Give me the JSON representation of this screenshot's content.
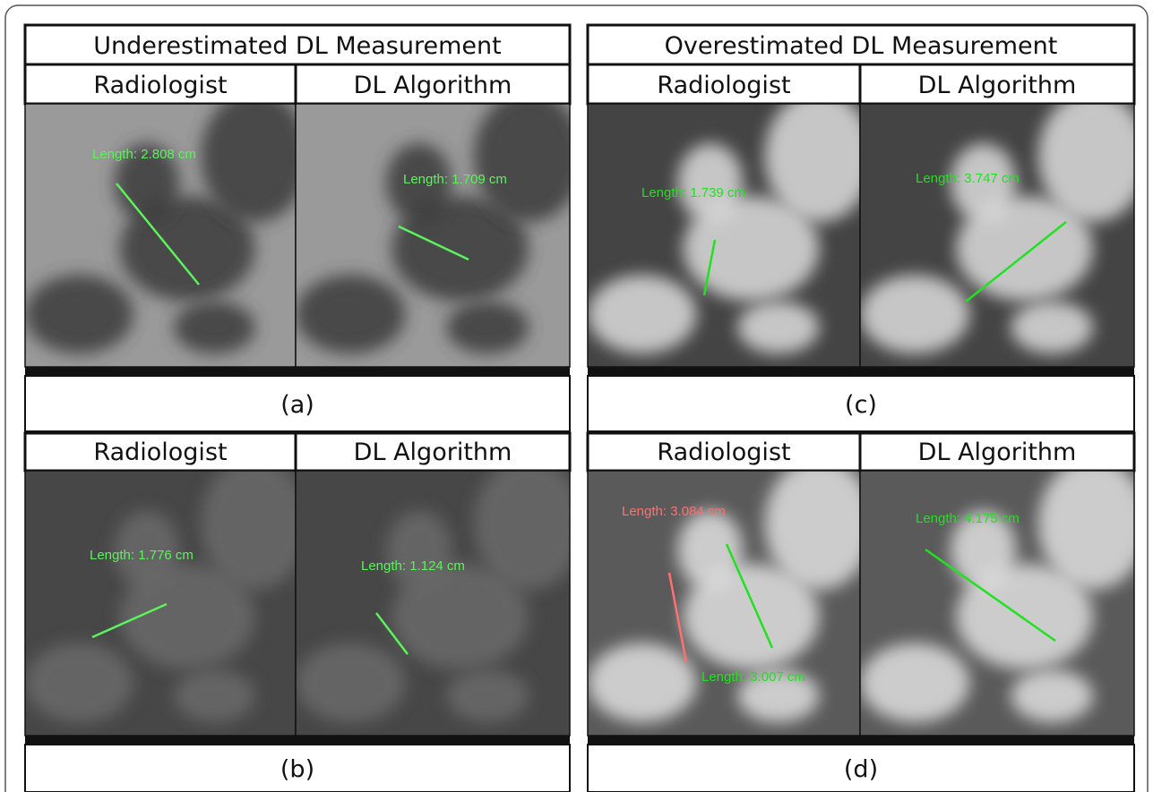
{
  "panels": [
    {
      "title": "Underestimated DL Measurement",
      "cases": [
        {
          "caption": "(a)",
          "columns": [
            {
              "header": "Radiologist",
              "measurements": [
                {
                  "text": "Length: 2.808 cm",
                  "color": "#5cf25c"
                }
              ]
            },
            {
              "header": "DL Algorithm",
              "measurements": [
                {
                  "text": "Length: 1.709 cm",
                  "color": "#5cf25c"
                }
              ]
            }
          ]
        },
        {
          "caption": "(b)",
          "columns": [
            {
              "header": "Radiologist",
              "measurements": [
                {
                  "text": "Length: 1.776 cm",
                  "color": "#5cf25c"
                }
              ]
            },
            {
              "header": "DL Algorithm",
              "measurements": [
                {
                  "text": "Length: 1.124 cm",
                  "color": "#5cf25c"
                }
              ]
            }
          ]
        }
      ]
    },
    {
      "title": "Overestimated DL Measurement",
      "cases": [
        {
          "caption": "(c)",
          "columns": [
            {
              "header": "Radiologist",
              "measurements": [
                {
                  "text": "Length: 1.739 cm",
                  "color": "#22e022"
                }
              ]
            },
            {
              "header": "DL Algorithm",
              "measurements": [
                {
                  "text": "Length: 3.747 cm",
                  "color": "#22e022"
                }
              ]
            }
          ]
        },
        {
          "caption": "(d)",
          "columns": [
            {
              "header": "Radiologist",
              "measurements": [
                {
                  "text": "Length: 3.084 cm",
                  "color": "#ff7070"
                },
                {
                  "text": "Length: 3.007 cm",
                  "color": "#22e022"
                }
              ]
            },
            {
              "header": "DL Algorithm",
              "measurements": [
                {
                  "text": "Length: 4.175 cm",
                  "color": "#22e022"
                }
              ]
            }
          ]
        }
      ]
    }
  ]
}
